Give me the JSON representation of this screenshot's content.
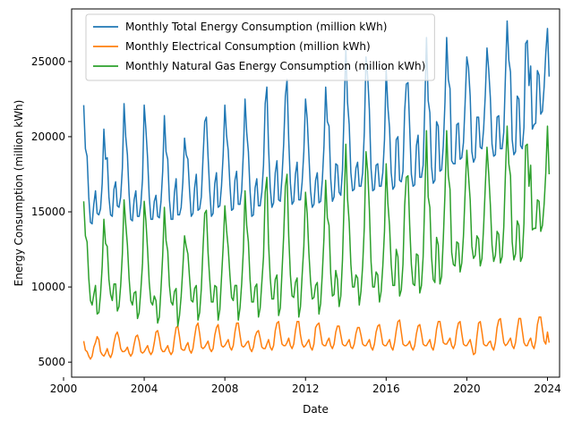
{
  "chart_data": {
    "type": "line",
    "xlabel": "Date",
    "ylabel": "Energy Consumption (million kWh)",
    "xlim": [
      2000.4,
      2024.6
    ],
    "ylim": [
      4000,
      28500
    ],
    "x_ticks": [
      2000,
      2004,
      2008,
      2012,
      2016,
      2020,
      2024
    ],
    "y_ticks": [
      5000,
      10000,
      15000,
      20000,
      25000
    ],
    "grid": false,
    "legend_position": "upper-left",
    "x_start_year": 2001,
    "series": [
      {
        "name": "Monthly Total Energy Consumption (million kWh)",
        "color": "#1f77b4",
        "values": [
          22100,
          19200,
          18700,
          16000,
          14300,
          14200,
          15500,
          16400,
          14900,
          14800,
          15200,
          16900,
          20500,
          18500,
          18600,
          16000,
          14800,
          14700,
          16500,
          17000,
          15400,
          15300,
          16000,
          17900,
          22200,
          20000,
          18800,
          16200,
          14500,
          14400,
          15800,
          16400,
          14700,
          14700,
          15500,
          17200,
          22100,
          20500,
          18600,
          16000,
          14500,
          14500,
          15700,
          16100,
          14700,
          14600,
          15700,
          17700,
          21400,
          19000,
          18500,
          15800,
          14500,
          14500,
          16300,
          17200,
          14800,
          14800,
          15300,
          17000,
          19900,
          18800,
          18500,
          16400,
          14700,
          14900,
          16600,
          17500,
          15100,
          15200,
          16000,
          18600,
          21000,
          21300,
          18700,
          16400,
          14700,
          14900,
          16900,
          17600,
          15300,
          15400,
          16700,
          18800,
          22100,
          20100,
          19100,
          16800,
          15100,
          15200,
          17100,
          17700,
          15500,
          15500,
          16400,
          18900,
          22500,
          20300,
          19000,
          16400,
          14700,
          14800,
          16600,
          17200,
          15400,
          15400,
          16300,
          18100,
          22200,
          23300,
          19300,
          16600,
          15300,
          15600,
          17600,
          18400,
          15800,
          15700,
          17300,
          19500,
          22700,
          23800,
          19800,
          16900,
          15500,
          15700,
          17500,
          18300,
          15800,
          15800,
          17000,
          19000,
          22500,
          21200,
          18800,
          16400,
          15300,
          15500,
          17100,
          17600,
          15600,
          15700,
          17100,
          19400,
          23300,
          21000,
          20700,
          17200,
          15700,
          16000,
          18200,
          18100,
          16300,
          16100,
          17800,
          21800,
          25900,
          22300,
          20800,
          17600,
          16400,
          16500,
          17900,
          18300,
          16700,
          16700,
          17600,
          20300,
          25300,
          24000,
          21800,
          17900,
          16400,
          16500,
          18100,
          18200,
          16700,
          16700,
          17600,
          19800,
          24500,
          22000,
          20600,
          17600,
          16500,
          16700,
          19800,
          20000,
          17100,
          17000,
          17700,
          21700,
          23500,
          23600,
          20600,
          17500,
          16700,
          16800,
          19400,
          20100,
          17300,
          17300,
          18100,
          22100,
          26600,
          22400,
          21600,
          18000,
          16900,
          17100,
          21000,
          20700,
          17700,
          17800,
          19400,
          22300,
          26600,
          23800,
          23200,
          18400,
          18200,
          18200,
          20800,
          20900,
          18500,
          18600,
          19600,
          22300,
          25300,
          24600,
          22700,
          19000,
          18300,
          18600,
          21300,
          21300,
          19300,
          19200,
          20500,
          22800,
          25900,
          24500,
          22600,
          19500,
          18700,
          18800,
          21300,
          21400,
          19200,
          19200,
          20300,
          24100,
          27700,
          25100,
          24300,
          19800,
          18800,
          19000,
          22700,
          22500,
          19400,
          19200,
          20600,
          26200,
          26400,
          23400,
          24700,
          20500,
          20800,
          20900,
          24400,
          24100,
          21500,
          21700,
          23300,
          25600,
          27200,
          24000
        ]
      },
      {
        "name": "Monthly Electrical Consumption (million kWh)",
        "color": "#ff7f0e",
        "values": [
          6400,
          5800,
          5700,
          5400,
          5200,
          5400,
          6000,
          6300,
          6700,
          6500,
          5700,
          5500,
          5400,
          5600,
          5900,
          5500,
          5300,
          5600,
          6300,
          6800,
          7000,
          6600,
          5900,
          5700,
          5700,
          5800,
          6000,
          5600,
          5400,
          5600,
          6200,
          6700,
          6800,
          6400,
          5700,
          5600,
          5700,
          5900,
          6100,
          5700,
          5500,
          5700,
          6300,
          7000,
          7100,
          6600,
          5900,
          5700,
          5700,
          5900,
          6100,
          5700,
          5500,
          5700,
          6600,
          7300,
          7400,
          6700,
          5900,
          5800,
          5800,
          6100,
          6300,
          5800,
          5600,
          5900,
          6700,
          7400,
          7600,
          6900,
          6000,
          5900,
          6000,
          6200,
          6400,
          5900,
          5700,
          5900,
          6800,
          7300,
          7500,
          6800,
          6100,
          6000,
          6100,
          6300,
          6500,
          6000,
          5800,
          6100,
          7000,
          7600,
          7600,
          6800,
          6100,
          6000,
          6100,
          6300,
          6400,
          5900,
          5700,
          6000,
          6700,
          7000,
          7100,
          6600,
          6000,
          5900,
          5900,
          6200,
          6500,
          6000,
          5800,
          6100,
          7100,
          7600,
          7700,
          6900,
          6200,
          6100,
          6100,
          6300,
          6600,
          6100,
          5900,
          6200,
          7100,
          7700,
          7700,
          6800,
          6200,
          6000,
          6100,
          6300,
          6500,
          6000,
          5800,
          6200,
          7300,
          7500,
          7600,
          6900,
          6200,
          6100,
          6100,
          6400,
          6600,
          6100,
          5900,
          6200,
          7000,
          7400,
          7400,
          6800,
          6200,
          6100,
          6100,
          6300,
          6500,
          6000,
          5900,
          6200,
          6900,
          7300,
          7300,
          6800,
          6200,
          6100,
          6100,
          6300,
          6500,
          6000,
          5800,
          6200,
          7000,
          7400,
          7500,
          6900,
          6200,
          6100,
          6100,
          6300,
          6500,
          6000,
          5800,
          6300,
          7100,
          7700,
          7800,
          7000,
          6200,
          6100,
          6100,
          6200,
          6400,
          6000,
          5800,
          6100,
          6900,
          7400,
          7500,
          6900,
          6200,
          6100,
          6100,
          6300,
          6500,
          6000,
          5800,
          6300,
          7200,
          7700,
          7700,
          7000,
          6300,
          6200,
          6200,
          6400,
          6600,
          6100,
          5900,
          6200,
          7100,
          7600,
          7700,
          6900,
          6200,
          6100,
          6100,
          6300,
          6500,
          6000,
          5500,
          5600,
          6700,
          7600,
          7700,
          7000,
          6200,
          6100,
          6100,
          6300,
          6400,
          6000,
          5800,
          6300,
          7300,
          7800,
          7900,
          7100,
          6300,
          6100,
          6200,
          6400,
          6600,
          6100,
          5900,
          6300,
          7200,
          7900,
          7900,
          7100,
          6300,
          6100,
          6100,
          6400,
          6600,
          6100,
          5900,
          6400,
          7500,
          8000,
          8000,
          7200,
          6400,
          6200,
          7000,
          6300
        ]
      },
      {
        "name": "Monthly Natural Gas Energy Consumption (million kWh)",
        "color": "#2ca02c",
        "values": [
          15700,
          13400,
          13000,
          10600,
          9100,
          8800,
          9500,
          10100,
          8200,
          8300,
          9500,
          11400,
          14500,
          12900,
          12700,
          10500,
          9500,
          9100,
          10200,
          10200,
          8400,
          8700,
          10100,
          12200,
          15800,
          14200,
          12800,
          10600,
          9100,
          8800,
          9600,
          9700,
          7900,
          8300,
          9800,
          11600,
          15700,
          14400,
          12500,
          10300,
          9000,
          8800,
          9400,
          9100,
          7600,
          8000,
          9900,
          12100,
          15300,
          13100,
          12400,
          10100,
          9000,
          8800,
          9700,
          9900,
          7400,
          8100,
          9400,
          11300,
          13400,
          12700,
          12200,
          10600,
          9100,
          9000,
          9900,
          10100,
          7800,
          8300,
          9900,
          12600,
          14900,
          15100,
          12300,
          10500,
          9000,
          9000,
          10100,
          10000,
          7800,
          8500,
          10600,
          12700,
          15400,
          13800,
          12600,
          10800,
          9300,
          9100,
          10100,
          10100,
          7800,
          8600,
          10200,
          12400,
          16400,
          14100,
          13000,
          10500,
          9000,
          9000,
          10000,
          10200,
          8000,
          8600,
          10300,
          12000,
          16300,
          17300,
          12900,
          10600,
          9200,
          9200,
          10500,
          10800,
          8100,
          8600,
          11000,
          13400,
          16700,
          17500,
          13400,
          10800,
          9400,
          9300,
          10300,
          10600,
          8000,
          8700,
          10800,
          12700,
          16300,
          14900,
          12300,
          10400,
          9200,
          9300,
          10100,
          10300,
          8200,
          8900,
          10900,
          13300,
          17100,
          14600,
          14100,
          10900,
          9400,
          9500,
          11100,
          10500,
          8700,
          9400,
          11800,
          15700,
          19500,
          15900,
          14300,
          11500,
          10000,
          10000,
          10800,
          10600,
          8800,
          9700,
          11400,
          14000,
          19000,
          17700,
          15200,
          11700,
          10000,
          10000,
          11000,
          10800,
          9000,
          9700,
          11400,
          13700,
          18200,
          15600,
          14100,
          11500,
          10100,
          10100,
          12500,
          12000,
          9400,
          9800,
          11500,
          15400,
          17300,
          17400,
          14100,
          11500,
          10200,
          10100,
          12200,
          12100,
          9600,
          10100,
          12000,
          15900,
          20400,
          16000,
          15300,
          12000,
          10500,
          10300,
          13300,
          12800,
          10200,
          10700,
          13200,
          16200,
          20400,
          17400,
          16500,
          12300,
          11500,
          11400,
          13000,
          12900,
          11000,
          11600,
          13400,
          16300,
          19100,
          17400,
          15800,
          12700,
          11900,
          12100,
          13400,
          13200,
          11400,
          11900,
          14000,
          16700,
          19300,
          17600,
          15500,
          12800,
          11700,
          12100,
          13700,
          13500,
          11600,
          12000,
          14000,
          17600,
          20700,
          18200,
          17400,
          13000,
          11800,
          12200,
          14400,
          14100,
          11700,
          12000,
          14200,
          19400,
          19500,
          16700,
          18100,
          13800,
          13900,
          13900,
          15800,
          15700,
          13700,
          14100,
          15500,
          17600,
          20700,
          17500
        ]
      }
    ]
  }
}
